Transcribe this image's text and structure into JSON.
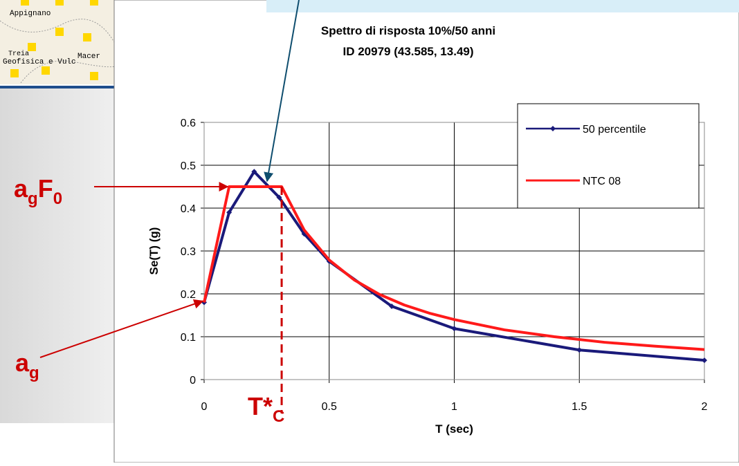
{
  "map_labels": [
    "Appignano",
    "Treia",
    "Geofisica e Vulc",
    "Macer"
  ],
  "chart_data": {
    "type": "line",
    "title": "Spettro di risposta 10%/50 anni",
    "subtitle": "ID 20979 (43.585, 13.49)",
    "x_label": "T (sec)",
    "y_label": "Se(T) (g)",
    "xlim": [
      0,
      2
    ],
    "xticks": [
      0,
      0.5,
      1,
      1.5,
      2
    ],
    "ylim": [
      0,
      0.6
    ],
    "yticks": [
      0,
      0.1,
      0.2,
      0.3,
      0.4,
      0.5,
      0.6
    ],
    "grid": true,
    "legend": "upper right",
    "series": [
      {
        "name": "50 percentile",
        "color": "#1a1a7a",
        "markers": true,
        "x": [
          0,
          0.1,
          0.2,
          0.3,
          0.4,
          0.5,
          0.75,
          1,
          1.5,
          2
        ],
        "values": [
          0.18,
          0.39,
          0.485,
          0.425,
          0.34,
          0.276,
          0.171,
          0.119,
          0.069,
          0.045
        ]
      },
      {
        "name": "NTC 08",
        "color": "#ff1a1a",
        "markers": false,
        "x": [
          0,
          0.1,
          0.31,
          0.4,
          0.5,
          0.6,
          0.7,
          0.8,
          0.9,
          1,
          1.2,
          1.4,
          1.6,
          1.8,
          2
        ],
        "values": [
          0.18,
          0.45,
          0.45,
          0.349,
          0.279,
          0.2325,
          0.199,
          0.174,
          0.155,
          0.14,
          0.116,
          0.1,
          0.087,
          0.078,
          0.07
        ]
      }
    ],
    "annotations": [
      [
        "a",
        "g",
        "F",
        "0"
      ],
      [
        "a",
        "g"
      ],
      [
        "T*",
        "C"
      ]
    ]
  }
}
